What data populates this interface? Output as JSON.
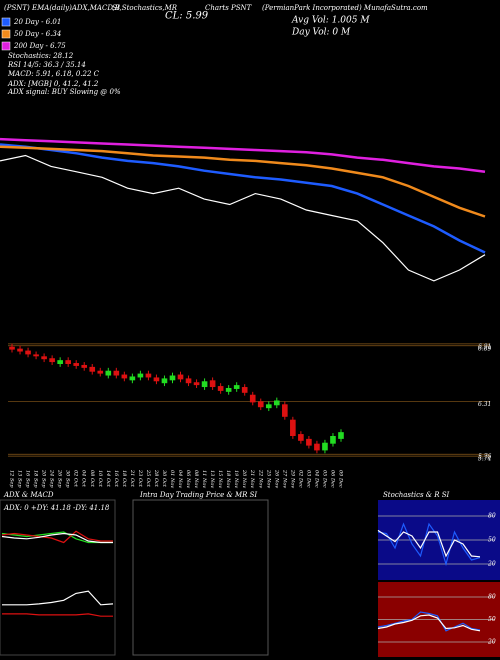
{
  "header": {
    "title_left": "(PSNT) EMA(daily)ADX,MACD,B",
    "title_mid": "SI,Stochastics,MR",
    "close": "CL: 5.99",
    "title_charts": "Charts PSNT",
    "company": "(PermianPark Incorporated) MunafaSutra.com",
    "avg_vol": "Avg Vol: 1.005 M",
    "day_vol": "Day Vol: 0 M"
  },
  "indicators": [
    "Stochastics: 28.12",
    "RSI 14/5: 36.3 / 35.14",
    "MACD: 5.91, 6.18, 0.22 C",
    "ADX: [MGB] 0, 41.2, 41.2",
    "ADX signal: BUY Slowing @ 0%"
  ],
  "chart_data": [
    {
      "type": "line",
      "ylim": [
        5.3,
        7.5
      ],
      "series": [
        {
          "name": "20 Day - 6.01",
          "color": "#1e5cff",
          "values": [
            7.0,
            6.98,
            6.95,
            6.92,
            6.88,
            6.85,
            6.83,
            6.8,
            6.76,
            6.73,
            6.7,
            6.68,
            6.65,
            6.62,
            6.55,
            6.45,
            6.35,
            6.25,
            6.12,
            6.01
          ]
        },
        {
          "name": "50 Day - 6.34",
          "color": "#f08a1c",
          "values": [
            6.98,
            6.97,
            6.96,
            6.95,
            6.94,
            6.92,
            6.9,
            6.89,
            6.88,
            6.86,
            6.85,
            6.83,
            6.81,
            6.78,
            6.74,
            6.7,
            6.62,
            6.52,
            6.42,
            6.34
          ]
        },
        {
          "name": "200 Day - 6.75",
          "color": "#e020e0",
          "values": [
            7.05,
            7.04,
            7.03,
            7.02,
            7.01,
            7.0,
            6.99,
            6.98,
            6.97,
            6.96,
            6.95,
            6.94,
            6.93,
            6.91,
            6.88,
            6.86,
            6.83,
            6.8,
            6.78,
            6.75
          ]
        },
        {
          "color": "#ffffff",
          "values": [
            6.85,
            6.9,
            6.8,
            6.75,
            6.7,
            6.6,
            6.55,
            6.6,
            6.5,
            6.45,
            6.55,
            6.5,
            6.4,
            6.35,
            6.3,
            6.1,
            5.85,
            5.75,
            5.85,
            5.99
          ]
        }
      ]
    },
    {
      "type": "candlestick",
      "up_color": "#22dd22",
      "down_color": "#dd1111",
      "ylim": [
        5.7,
        6.95
      ],
      "yticks": [
        6.91,
        6.89,
        6.31,
        5.76,
        5.74
      ],
      "categories": [
        "12 Sep",
        "13 Sep",
        "16 Sep",
        "18 Sep",
        "20 Sep",
        "24 Sep",
        "26 Sep",
        "30 Sep",
        "02 Oct",
        "04 Oct",
        "08 Oct",
        "10 Oct",
        "14 Oct",
        "16 Oct",
        "18 Oct",
        "21 Oct",
        "23 Oct",
        "25 Oct",
        "28 Oct",
        "30 Oct",
        "01 Nov",
        "04 Nov",
        "06 Nov",
        "08 Nov",
        "11 Nov",
        "13 Nov",
        "15 Nov",
        "18 Nov",
        "19 Nov",
        "20 Nov",
        "21 Nov",
        "22 Nov",
        "25 Nov",
        "26 Nov",
        "27 Nov",
        "29 Nov",
        "02 Dec",
        "03 Dec",
        "04 Dec",
        "05 Dec",
        "06 Dec",
        "09 Dec"
      ],
      "open": [
        6.88,
        6.86,
        6.84,
        6.8,
        6.78,
        6.76,
        6.7,
        6.74,
        6.71,
        6.69,
        6.67,
        6.63,
        6.58,
        6.63,
        6.59,
        6.53,
        6.56,
        6.6,
        6.56,
        6.5,
        6.53,
        6.59,
        6.55,
        6.51,
        6.46,
        6.53,
        6.47,
        6.41,
        6.44,
        6.46,
        6.38,
        6.31,
        6.24,
        6.27,
        6.28,
        6.12,
        5.97,
        5.92,
        5.87,
        5.8,
        5.87,
        5.92
      ],
      "high": [
        6.91,
        6.89,
        6.87,
        6.83,
        6.81,
        6.79,
        6.77,
        6.77,
        6.74,
        6.72,
        6.7,
        6.66,
        6.66,
        6.66,
        6.62,
        6.6,
        6.63,
        6.63,
        6.59,
        6.58,
        6.61,
        6.62,
        6.58,
        6.54,
        6.55,
        6.56,
        6.5,
        6.48,
        6.51,
        6.49,
        6.41,
        6.34,
        6.31,
        6.35,
        6.31,
        6.15,
        6.0,
        5.95,
        5.9,
        5.91,
        5.98,
        6.02
      ],
      "low": [
        6.82,
        6.8,
        6.77,
        6.75,
        6.72,
        6.69,
        6.67,
        6.67,
        6.65,
        6.63,
        6.59,
        6.57,
        6.55,
        6.55,
        6.52,
        6.5,
        6.53,
        6.53,
        6.49,
        6.47,
        6.5,
        6.51,
        6.47,
        6.45,
        6.43,
        6.43,
        6.39,
        6.38,
        6.41,
        6.37,
        6.27,
        6.22,
        6.21,
        6.24,
        6.12,
        5.92,
        5.87,
        5.82,
        5.77,
        5.77,
        5.84,
        5.89
      ],
      "close": [
        6.85,
        6.83,
        6.8,
        6.78,
        6.75,
        6.72,
        6.74,
        6.7,
        6.68,
        6.66,
        6.62,
        6.6,
        6.63,
        6.58,
        6.55,
        6.57,
        6.6,
        6.56,
        6.52,
        6.55,
        6.58,
        6.54,
        6.5,
        6.48,
        6.52,
        6.46,
        6.42,
        6.45,
        6.48,
        6.4,
        6.3,
        6.25,
        6.28,
        6.32,
        6.15,
        5.95,
        5.9,
        5.85,
        5.8,
        5.88,
        5.95,
        5.99
      ]
    },
    {
      "type": "line",
      "title": "ADX & MACD",
      "subtitle": "ADX: 0  +DY: 41.18  -DY: 41.18",
      "ylim": [
        0,
        100
      ],
      "series": [
        {
          "color": "#22dd22",
          "values": [
            62,
            60,
            58,
            60,
            62,
            64,
            55,
            50,
            50,
            50
          ]
        },
        {
          "color": "#dd1111",
          "values": [
            60,
            62,
            60,
            58,
            56,
            50,
            65,
            55,
            52,
            52
          ]
        },
        {
          "color": "#ffffff",
          "values": [
            58,
            56,
            55,
            57,
            60,
            62,
            60,
            52,
            50,
            50
          ]
        }
      ]
    },
    {
      "type": "line",
      "ylim": [
        5.5,
        7.1
      ],
      "series": [
        {
          "color": "#ffffff",
          "values": [
            6.6,
            6.6,
            6.6,
            6.62,
            6.65,
            6.7,
            6.85,
            6.9,
            6.6,
            6.62
          ]
        },
        {
          "color": "#dd1111",
          "values": [
            6.4,
            6.4,
            6.4,
            6.38,
            6.38,
            6.38,
            6.38,
            6.4,
            6.35,
            6.35
          ]
        }
      ]
    },
    {
      "type": "empty",
      "title": "Intra Day Trading Price & MR SI"
    },
    {
      "type": "line",
      "title": "Stochastics & R SI",
      "ylim": [
        0,
        100
      ],
      "yticks": [
        80,
        50,
        20
      ],
      "series": [
        {
          "color": "#1e5cff",
          "values": [
            60,
            58,
            40,
            70,
            45,
            30,
            70,
            55,
            20,
            60,
            40,
            25,
            28
          ]
        },
        {
          "color": "#ffffff",
          "values": [
            62,
            55,
            48,
            60,
            55,
            40,
            60,
            60,
            30,
            50,
            45,
            30,
            29
          ]
        }
      ]
    },
    {
      "type": "line",
      "ylim": [
        0,
        100
      ],
      "yticks": [
        80,
        50,
        20
      ],
      "series": [
        {
          "color": "#1e5cff",
          "values": [
            40,
            42,
            45,
            48,
            50,
            60,
            58,
            55,
            35,
            40,
            45,
            38,
            36
          ]
        },
        {
          "color": "#ffffff",
          "values": [
            38,
            40,
            44,
            46,
            49,
            55,
            56,
            52,
            38,
            39,
            42,
            37,
            35
          ]
        }
      ]
    }
  ]
}
